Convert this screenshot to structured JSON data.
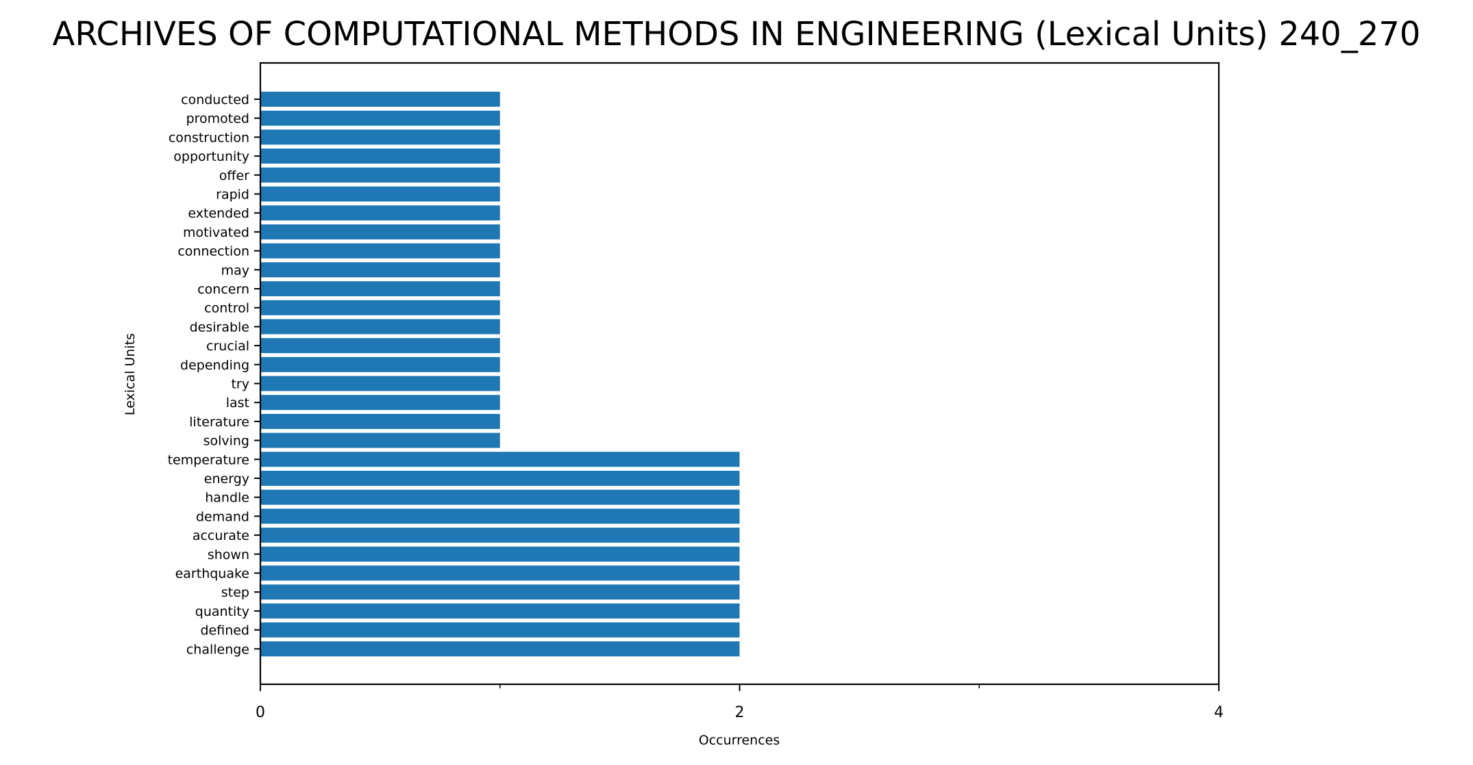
{
  "chart_data": {
    "type": "bar",
    "orientation": "horizontal",
    "title": "ARCHIVES OF COMPUTATIONAL METHODS IN ENGINEERING (Lexical Units) 240_270",
    "xlabel": "Occurrences",
    "ylabel": "Lexical Units",
    "xlim": [
      0,
      4
    ],
    "xticks": [
      0,
      2,
      4
    ],
    "xticks_minor": [
      1,
      3
    ],
    "bar_color": "#1f77b4",
    "grid": false,
    "legend": "none",
    "categories": [
      "conducted",
      "promoted",
      "construction",
      "opportunity",
      "offer",
      "rapid",
      "extended",
      "motivated",
      "connection",
      "may",
      "concern",
      "control",
      "desirable",
      "crucial",
      "depending",
      "try",
      "last",
      "literature",
      "solving",
      "temperature",
      "energy",
      "handle",
      "demand",
      "accurate",
      "shown",
      "earthquake",
      "step",
      "quantity",
      "defined",
      "challenge"
    ],
    "values": [
      1,
      1,
      1,
      1,
      1,
      1,
      1,
      1,
      1,
      1,
      1,
      1,
      1,
      1,
      1,
      1,
      1,
      1,
      1,
      2,
      2,
      2,
      2,
      2,
      2,
      2,
      2,
      2,
      2,
      2
    ]
  }
}
